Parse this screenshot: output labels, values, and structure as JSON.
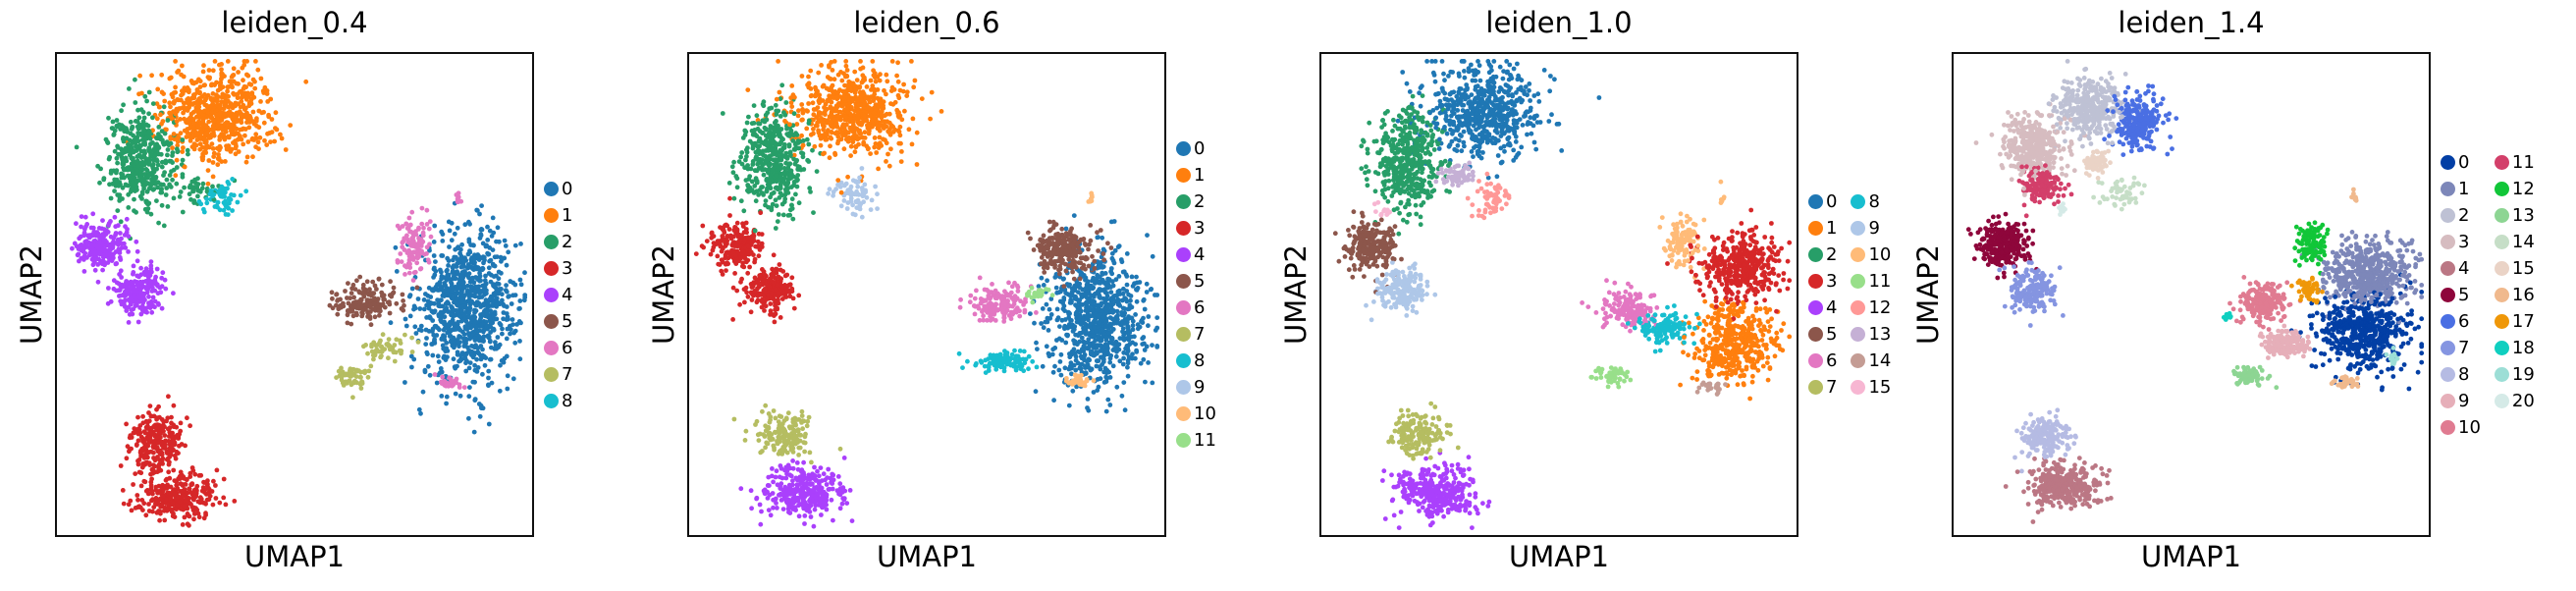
{
  "chart_data": [
    {
      "type": "scatter",
      "title": "leiden_0.4",
      "xlabel": "UMAP1",
      "ylabel": "UMAP2",
      "xlim": [
        0,
        10
      ],
      "ylim": [
        0,
        10
      ],
      "grid": false,
      "legend_placement": "right",
      "legend_columns": [
        [
          0,
          1,
          2,
          3,
          4,
          5,
          6,
          7,
          8
        ]
      ],
      "categories": [
        "0",
        "1",
        "2",
        "3",
        "4",
        "5",
        "6",
        "7",
        "8"
      ],
      "colors": [
        "#1f77b4",
        "#ff7f0e",
        "#279e68",
        "#d62728",
        "#aa40fc",
        "#8c564b",
        "#e377c2",
        "#b5bd61",
        "#17becf"
      ],
      "clusters": [
        {
          "label": "0",
          "blobs": [
            [
              8.65,
              4.76,
              0.85,
              1.3,
              900
            ]
          ]
        },
        {
          "label": "1",
          "blobs": [
            [
              3.36,
              8.74,
              1.0,
              0.8,
              650
            ]
          ]
        },
        {
          "label": "2",
          "blobs": [
            [
              1.75,
              7.8,
              0.6,
              0.85,
              450
            ],
            [
              3.0,
              7.2,
              0.4,
              0.2,
              40
            ]
          ]
        },
        {
          "label": "3",
          "blobs": [
            [
              2.1,
              1.9,
              0.45,
              0.55,
              250
            ],
            [
              2.5,
              0.8,
              0.7,
              0.4,
              300
            ]
          ]
        },
        {
          "label": "4",
          "blobs": [
            [
              0.97,
              6.0,
              0.45,
              0.42,
              220
            ],
            [
              1.71,
              5.07,
              0.42,
              0.38,
              200
            ]
          ]
        },
        {
          "label": "5",
          "blobs": [
            [
              6.48,
              4.84,
              0.6,
              0.35,
              160
            ]
          ]
        },
        {
          "label": "6",
          "blobs": [
            [
              7.53,
              6.0,
              0.3,
              0.45,
              110
            ],
            [
              8.22,
              3.16,
              0.22,
              0.1,
              30
            ],
            [
              8.44,
              7.0,
              0.04,
              0.14,
              8
            ]
          ]
        },
        {
          "label": "7",
          "blobs": [
            [
              6.22,
              3.28,
              0.3,
              0.18,
              60
            ],
            [
              6.92,
              3.9,
              0.45,
              0.2,
              50
            ]
          ]
        },
        {
          "label": "8",
          "blobs": [
            [
              3.53,
              7.0,
              0.35,
              0.32,
              60
            ]
          ]
        }
      ]
    },
    {
      "type": "scatter",
      "title": "leiden_0.6",
      "xlabel": "UMAP1",
      "ylabel": "UMAP2",
      "xlim": [
        0,
        10
      ],
      "ylim": [
        0,
        10
      ],
      "grid": false,
      "legend_placement": "right",
      "legend_columns": [
        [
          0,
          1,
          2,
          3,
          4,
          5,
          6,
          7,
          8,
          9,
          10,
          11
        ]
      ],
      "categories": [
        "0",
        "1",
        "2",
        "3",
        "4",
        "5",
        "6",
        "7",
        "8",
        "9",
        "10",
        "11"
      ],
      "colors": [
        "#1f77b4",
        "#ff7f0e",
        "#279e68",
        "#d62728",
        "#aa40fc",
        "#8c564b",
        "#e377c2",
        "#b5bd61",
        "#17becf",
        "#aec7e8",
        "#ffbb78",
        "#98df8a"
      ],
      "clusters": [
        {
          "label": "0",
          "blobs": [
            [
              8.6,
              4.5,
              0.85,
              1.15,
              800
            ]
          ]
        },
        {
          "label": "1",
          "blobs": [
            [
              3.4,
              8.8,
              1.0,
              0.78,
              620
            ]
          ]
        },
        {
          "label": "2",
          "blobs": [
            [
              1.8,
              7.8,
              0.6,
              0.85,
              450
            ]
          ]
        },
        {
          "label": "3",
          "blobs": [
            [
              1.0,
              6.0,
              0.45,
              0.42,
              220
            ],
            [
              1.7,
              5.1,
              0.42,
              0.38,
              200
            ]
          ]
        },
        {
          "label": "4",
          "blobs": [
            [
              2.4,
              0.9,
              0.7,
              0.45,
              320
            ]
          ]
        },
        {
          "label": "5",
          "blobs": [
            [
              7.9,
              5.9,
              0.55,
              0.38,
              230
            ]
          ]
        },
        {
          "label": "6",
          "blobs": [
            [
              6.5,
              4.8,
              0.55,
              0.32,
              160
            ]
          ]
        },
        {
          "label": "7",
          "blobs": [
            [
              2.0,
              2.1,
              0.45,
              0.38,
              160
            ]
          ]
        },
        {
          "label": "8",
          "blobs": [
            [
              6.6,
              3.6,
              0.55,
              0.18,
              100
            ]
          ]
        },
        {
          "label": "9",
          "blobs": [
            [
              3.5,
              7.1,
              0.35,
              0.35,
              70
            ]
          ]
        },
        {
          "label": "10",
          "blobs": [
            [
              8.2,
              3.2,
              0.22,
              0.1,
              30
            ],
            [
              8.44,
              7.0,
              0.04,
              0.14,
              8
            ]
          ]
        },
        {
          "label": "11",
          "blobs": [
            [
              7.3,
              5.0,
              0.18,
              0.13,
              25
            ]
          ]
        }
      ]
    },
    {
      "type": "scatter",
      "title": "leiden_1.0",
      "xlabel": "UMAP1",
      "ylabel": "UMAP2",
      "xlim": [
        0,
        10
      ],
      "ylim": [
        0,
        10
      ],
      "grid": false,
      "legend_placement": "right",
      "legend_columns": [
        [
          0,
          1,
          2,
          3,
          4,
          5,
          6,
          7
        ],
        [
          8,
          9,
          10,
          11,
          12,
          13,
          14,
          15
        ]
      ],
      "categories": [
        "0",
        "1",
        "2",
        "3",
        "4",
        "5",
        "6",
        "7",
        "8",
        "9",
        "10",
        "11",
        "12",
        "13",
        "14",
        "15"
      ],
      "colors": [
        "#1f77b4",
        "#ff7f0e",
        "#279e68",
        "#d62728",
        "#aa40fc",
        "#8c564b",
        "#e377c2",
        "#b5bd61",
        "#17becf",
        "#aec7e8",
        "#ffbb78",
        "#98df8a",
        "#ff9896",
        "#c5b0d5",
        "#c49c94",
        "#f7b6d2"
      ],
      "clusters": [
        {
          "label": "0",
          "blobs": [
            [
              3.4,
              8.8,
              1.0,
              0.78,
              620
            ]
          ]
        },
        {
          "label": "1",
          "blobs": [
            [
              8.7,
              4.0,
              0.75,
              0.65,
              420
            ]
          ]
        },
        {
          "label": "2",
          "blobs": [
            [
              1.8,
              7.8,
              0.6,
              0.85,
              450
            ]
          ]
        },
        {
          "label": "3",
          "blobs": [
            [
              8.8,
              5.6,
              0.7,
              0.55,
              420
            ]
          ]
        },
        {
          "label": "4",
          "blobs": [
            [
              2.4,
              0.9,
              0.7,
              0.45,
              320
            ]
          ]
        },
        {
          "label": "5",
          "blobs": [
            [
              1.0,
              6.0,
              0.45,
              0.42,
              220
            ]
          ]
        },
        {
          "label": "6",
          "blobs": [
            [
              6.5,
              4.7,
              0.55,
              0.32,
              160
            ]
          ]
        },
        {
          "label": "7",
          "blobs": [
            [
              2.0,
              2.1,
              0.45,
              0.38,
              160
            ]
          ]
        },
        {
          "label": "8",
          "blobs": [
            [
              7.2,
              4.3,
              0.45,
              0.28,
              120
            ]
          ]
        },
        {
          "label": "9",
          "blobs": [
            [
              1.7,
              5.1,
              0.42,
              0.38,
              200
            ]
          ]
        },
        {
          "label": "10",
          "blobs": [
            [
              7.6,
              6.1,
              0.32,
              0.42,
              110
            ],
            [
              8.44,
              7.0,
              0.04,
              0.14,
              8
            ]
          ]
        },
        {
          "label": "11",
          "blobs": [
            [
              6.1,
              3.3,
              0.28,
              0.14,
              55
            ]
          ]
        },
        {
          "label": "12",
          "blobs": [
            [
              3.6,
              7.0,
              0.35,
              0.32,
              60
            ]
          ]
        },
        {
          "label": "13",
          "blobs": [
            [
              2.9,
              7.5,
              0.28,
              0.22,
              60
            ]
          ]
        },
        {
          "label": "14",
          "blobs": [
            [
              8.2,
              3.1,
              0.22,
              0.1,
              30
            ]
          ]
        },
        {
          "label": "15",
          "blobs": [
            [
              1.3,
              6.8,
              0.14,
              0.14,
              12
            ]
          ]
        }
      ]
    },
    {
      "type": "scatter",
      "title": "leiden_1.4",
      "xlabel": "UMAP1",
      "ylabel": "UMAP2",
      "xlim": [
        0,
        10
      ],
      "ylim": [
        0,
        10
      ],
      "grid": false,
      "legend_placement": "right",
      "legend_columns": [
        [
          0,
          1,
          2,
          3,
          4,
          5,
          6,
          7,
          8,
          9,
          10
        ],
        [
          11,
          12,
          13,
          14,
          15,
          16,
          17,
          18,
          19,
          20
        ]
      ],
      "categories": [
        "0",
        "1",
        "2",
        "3",
        "4",
        "5",
        "6",
        "7",
        "8",
        "9",
        "10",
        "11",
        "12",
        "13",
        "14",
        "15",
        "16",
        "17",
        "18",
        "19",
        "20"
      ],
      "colors": [
        "#023fa5",
        "#7d87b9",
        "#bec1d4",
        "#d6bcc0",
        "#bb7784",
        "#8e063b",
        "#4a6fe3",
        "#8595e1",
        "#b5bbe3",
        "#e6afb9",
        "#e07b91",
        "#d33f6a",
        "#11c638",
        "#8dd593",
        "#c6dec7",
        "#ead3c6",
        "#f0b98d",
        "#ef9708",
        "#0fcfc0",
        "#9cded6",
        "#d5eae7"
      ],
      "clusters": [
        {
          "label": "0",
          "blobs": [
            [
              8.64,
              4.22,
              0.8,
              0.7,
              520
            ]
          ]
        },
        {
          "label": "1",
          "blobs": [
            [
              8.73,
              5.45,
              0.75,
              0.55,
              520
            ]
          ]
        },
        {
          "label": "2",
          "blobs": [
            [
              2.88,
              8.87,
              0.55,
              0.5,
              380
            ]
          ]
        },
        {
          "label": "3",
          "blobs": [
            [
              1.69,
              8.07,
              0.5,
              0.5,
              380
            ]
          ]
        },
        {
          "label": "4",
          "blobs": [
            [
              2.29,
              1.02,
              0.65,
              0.42,
              340
            ]
          ]
        },
        {
          "label": "5",
          "blobs": [
            [
              1.02,
              6.04,
              0.45,
              0.38,
              300
            ]
          ]
        },
        {
          "label": "6",
          "blobs": [
            [
              3.9,
              8.58,
              0.42,
              0.5,
              260
            ]
          ]
        },
        {
          "label": "7",
          "blobs": [
            [
              1.65,
              5.09,
              0.38,
              0.33,
              190
            ]
          ]
        },
        {
          "label": "8",
          "blobs": [
            [
              1.95,
              2.04,
              0.42,
              0.33,
              190
            ]
          ]
        },
        {
          "label": "9",
          "blobs": [
            [
              7.03,
              4.0,
              0.42,
              0.22,
              150
            ]
          ]
        },
        {
          "label": "10",
          "blobs": [
            [
              6.53,
              4.87,
              0.42,
              0.33,
              190
            ]
          ]
        },
        {
          "label": "11",
          "blobs": [
            [
              1.86,
              7.27,
              0.32,
              0.28,
              150
            ]
          ]
        },
        {
          "label": "12",
          "blobs": [
            [
              7.54,
              6.04,
              0.28,
              0.38,
              110
            ]
          ]
        },
        {
          "label": "13",
          "blobs": [
            [
              6.19,
              3.31,
              0.28,
              0.14,
              75
            ]
          ]
        },
        {
          "label": "14",
          "blobs": [
            [
              3.56,
              7.13,
              0.32,
              0.28,
              55
            ]
          ]
        },
        {
          "label": "15",
          "blobs": [
            [
              3.01,
              7.75,
              0.22,
              0.18,
              60
            ]
          ]
        },
        {
          "label": "16",
          "blobs": [
            [
              8.22,
              3.16,
              0.22,
              0.1,
              38
            ],
            [
              8.44,
              7.0,
              0.04,
              0.14,
              8
            ]
          ]
        },
        {
          "label": "17",
          "blobs": [
            [
              7.46,
              5.09,
              0.22,
              0.22,
              45
            ]
          ]
        },
        {
          "label": "18",
          "blobs": [
            [
              5.77,
              4.55,
              0.09,
              0.06,
              16
            ]
          ]
        },
        {
          "label": "19",
          "blobs": [
            [
              9.24,
              3.71,
              0.07,
              0.14,
              20
            ]
          ]
        },
        {
          "label": "20",
          "blobs": [
            [
              2.29,
              6.76,
              0.09,
              0.14,
              10
            ]
          ]
        }
      ]
    }
  ]
}
